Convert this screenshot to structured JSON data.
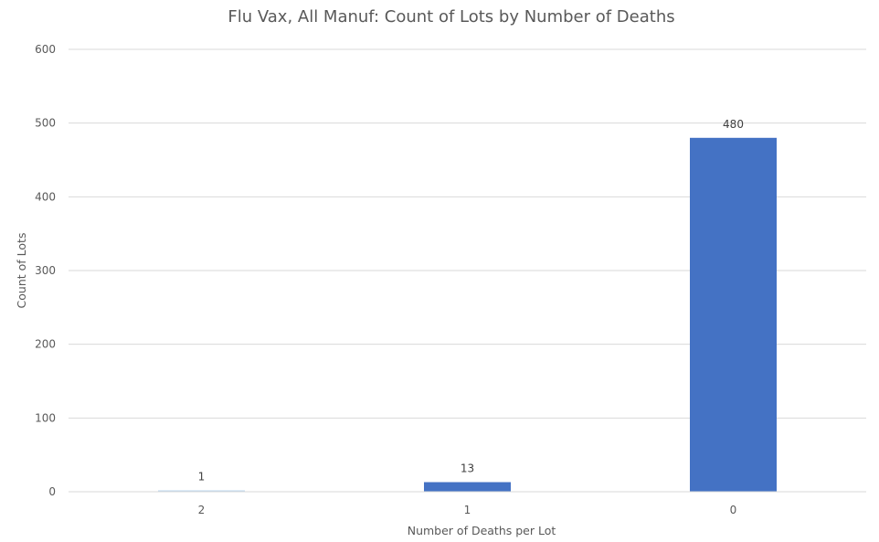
{
  "chart_data": {
    "type": "bar",
    "title": "Flu Vax, All Manuf: Count of Lots by Number of Deaths",
    "xlabel": "Number of Deaths per Lot",
    "ylabel": "Count of Lots",
    "categories": [
      "2",
      "1",
      "0"
    ],
    "values": [
      1,
      13,
      480
    ],
    "data_labels": [
      "1",
      "13",
      "480"
    ],
    "ylim": [
      0,
      600
    ],
    "yticks": [
      0,
      100,
      200,
      300,
      400,
      500,
      600
    ],
    "ytick_labels": [
      "0",
      "100",
      "200",
      "300",
      "400",
      "500",
      "600"
    ],
    "grid": true,
    "legend": "none",
    "bar_colors": [
      "#bdd7ee",
      "#4472c4",
      "#4472c4"
    ]
  }
}
